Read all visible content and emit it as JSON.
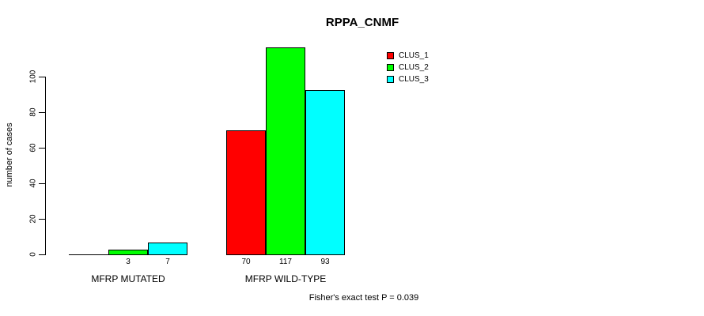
{
  "chart_data": {
    "type": "bar",
    "title": "RPPA_CNMF",
    "ylabel": "number of cases",
    "xlabel": "",
    "categories": [
      "MFRP MUTATED",
      "MFRP WILD-TYPE"
    ],
    "series": [
      {
        "name": "CLUS_1",
        "color": "#FF0000",
        "values": [
          0,
          70
        ]
      },
      {
        "name": "CLUS_2",
        "color": "#00FF00",
        "values": [
          3,
          117
        ]
      },
      {
        "name": "CLUS_3",
        "color": "#00FFFF",
        "values": [
          7,
          93
        ]
      }
    ],
    "bar_labels": [
      [
        "",
        "3",
        "7"
      ],
      [
        "70",
        "117",
        "93"
      ]
    ],
    "yticks": [
      0,
      20,
      40,
      60,
      80,
      100
    ],
    "ylim": [
      0,
      120
    ],
    "grid": false,
    "legend_position": "top-right",
    "footer": "Fisher's exact test P = 0.039",
    "colors": {
      "axis": "#000000",
      "text": "#000000",
      "background": "#FFFFFF"
    }
  }
}
